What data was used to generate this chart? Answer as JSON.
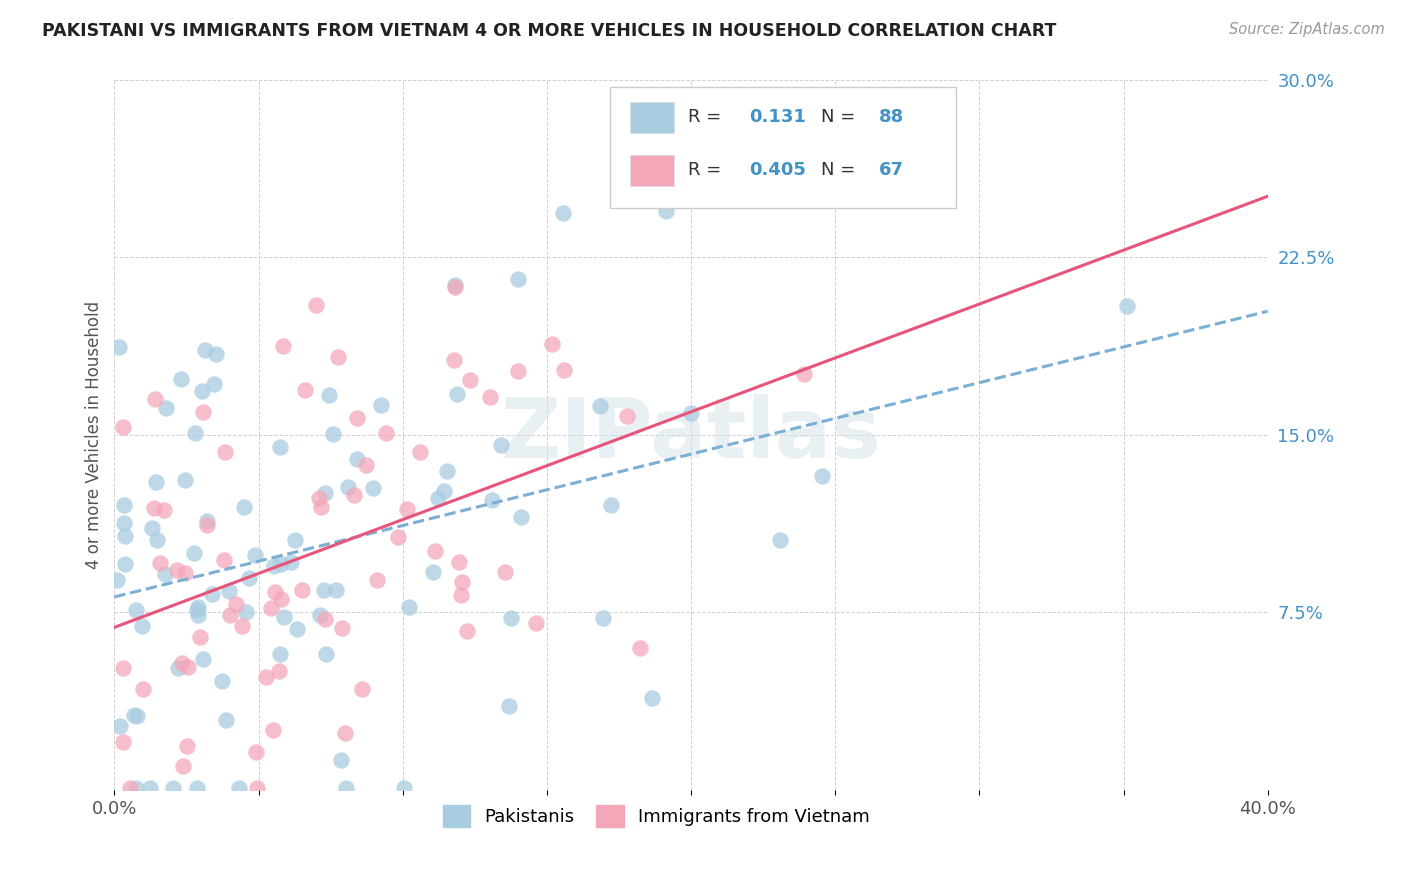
{
  "title": "PAKISTANI VS IMMIGRANTS FROM VIETNAM 4 OR MORE VEHICLES IN HOUSEHOLD CORRELATION CHART",
  "source": "Source: ZipAtlas.com",
  "ylabel": "4 or more Vehicles in Household",
  "xlim": [
    0.0,
    0.4
  ],
  "ylim": [
    0.0,
    0.3
  ],
  "xticks": [
    0.0,
    0.05,
    0.1,
    0.15,
    0.2,
    0.25,
    0.3,
    0.35,
    0.4
  ],
  "yticks": [
    0.0,
    0.075,
    0.15,
    0.225,
    0.3
  ],
  "xtick_labels": [
    "0.0%",
    "",
    "",
    "",
    "",
    "",
    "",
    "",
    "40.0%"
  ],
  "ytick_labels": [
    "",
    "7.5%",
    "15.0%",
    "22.5%",
    "30.0%"
  ],
  "pakistani_R": 0.131,
  "pakistani_N": 88,
  "vietnam_R": 0.405,
  "vietnam_N": 67,
  "pakistani_color": "#a8cce0",
  "vietnam_color": "#f4a7b9",
  "pakistani_line_color": "#7bafd4",
  "vietnam_line_color": "#e8547a",
  "watermark": "ZIPatlas",
  "legend_pakistanis": "Pakistanis",
  "legend_vietnam": "Immigrants from Vietnam",
  "pak_seed": 10,
  "viet_seed": 20
}
